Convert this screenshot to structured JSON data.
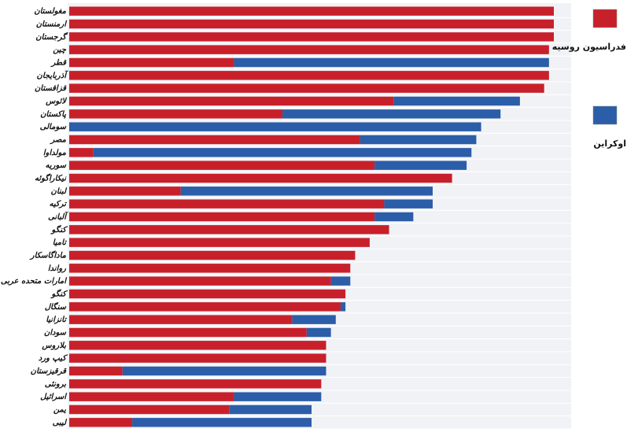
{
  "chart_data": {
    "type": "stacked-barh",
    "categories": [
      "مغولستان",
      "ارمنستان",
      "گرجستان",
      "چین",
      "قطر",
      "آذربایجان",
      "قزاقستان",
      "لائوس",
      "پاکستان",
      "سومالی",
      "مصر",
      "مولداوا",
      "سوریه",
      "نیکاراگوئه",
      "لبنان",
      "ترکیه",
      "آلبانی",
      "کنگو",
      "تامیا",
      "ماداگاسکار",
      "رواندا",
      "امارات متحده عربی",
      "کنگو",
      "سنگال",
      "تانزانیا",
      "سودان",
      "بلاروس",
      "کیپ ورد",
      "قرقیزستان",
      "برونئی",
      "اسرائیل",
      "یمن",
      "لیبی"
    ],
    "series": [
      {
        "name": "فدراسیون روسیه",
        "color": "#c8202a",
        "values": [
          100,
          100,
          100,
          99,
          34,
          99,
          98,
          67,
          44,
          0,
          60,
          5,
          63,
          79,
          23,
          65,
          63,
          66,
          62,
          59,
          58,
          54,
          57,
          56,
          46,
          49,
          53,
          53,
          11,
          52,
          34,
          33,
          13
        ]
      },
      {
        "name": "اوکراین",
        "color": "#2b5da8",
        "values": [
          null,
          null,
          null,
          null,
          65,
          null,
          null,
          26,
          45,
          85,
          24,
          78,
          19,
          null,
          52,
          10,
          8,
          null,
          null,
          null,
          null,
          4,
          null,
          1,
          9,
          5,
          null,
          null,
          42,
          null,
          18,
          17,
          37
        ]
      }
    ],
    "grid": true,
    "legend": "right"
  }
}
